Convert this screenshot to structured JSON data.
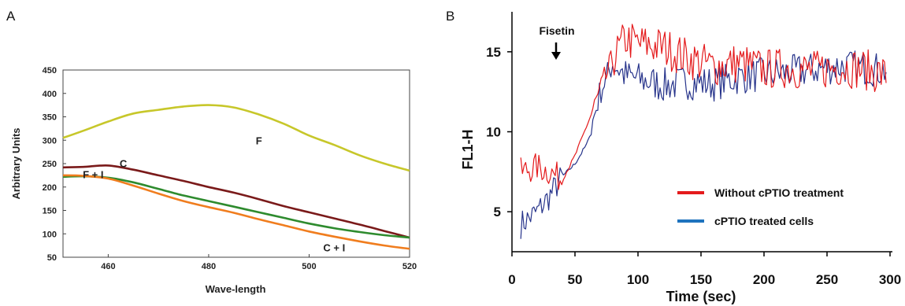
{
  "chart_data": [
    {
      "panel": "A",
      "type": "line",
      "xlabel": "Wave-length",
      "ylabel": "Arbitrary Units",
      "xlim": [
        451,
        520
      ],
      "ylim": [
        50,
        450
      ],
      "xticks": [
        460,
        480,
        500,
        520
      ],
      "yticks": [
        50,
        100,
        150,
        200,
        250,
        300,
        350,
        400,
        450
      ],
      "grid": false,
      "series": [
        {
          "name": "F",
          "color": "#c7c72a",
          "x": [
            451,
            455,
            460,
            465,
            470,
            475,
            480,
            485,
            490,
            495,
            500,
            505,
            510,
            515,
            520
          ],
          "y": [
            305,
            320,
            340,
            357,
            365,
            372,
            375,
            370,
            355,
            335,
            310,
            290,
            268,
            250,
            235
          ]
        },
        {
          "name": "C",
          "color": "#7a1a1a",
          "x": [
            451,
            455,
            460,
            465,
            470,
            475,
            480,
            485,
            490,
            495,
            500,
            505,
            510,
            515,
            520
          ],
          "y": [
            242,
            243,
            246,
            237,
            225,
            213,
            200,
            188,
            174,
            159,
            146,
            133,
            120,
            106,
            92
          ]
        },
        {
          "name": "F + I",
          "color": "#2e8b2e",
          "x": [
            451,
            455,
            460,
            465,
            470,
            475,
            480,
            485,
            490,
            495,
            500,
            505,
            510,
            515,
            520
          ],
          "y": [
            222,
            223,
            220,
            210,
            196,
            182,
            170,
            158,
            146,
            134,
            122,
            112,
            104,
            97,
            92
          ]
        },
        {
          "name": "C + I",
          "color": "#f07d1e",
          "x": [
            451,
            455,
            460,
            465,
            470,
            475,
            480,
            485,
            490,
            495,
            500,
            505,
            510,
            515,
            520
          ],
          "y": [
            225,
            224,
            218,
            203,
            186,
            170,
            157,
            145,
            131,
            118,
            105,
            94,
            84,
            75,
            68
          ]
        }
      ]
    },
    {
      "panel": "B",
      "type": "line",
      "xlabel": "Time (sec)",
      "ylabel": "FL1-H",
      "xlim": [
        0,
        300
      ],
      "ylim": [
        2.5,
        17.5
      ],
      "xticks": [
        0,
        50,
        100,
        150,
        200,
        250,
        300
      ],
      "yticks": [
        5,
        10,
        15
      ],
      "grid": false,
      "annotation": "Fisetin",
      "annotation_x": 40,
      "legend_position": "bottom-right",
      "series": [
        {
          "name": "Without cPTIO treatment",
          "color": "#e41a1c",
          "x": [
            7,
            20,
            30,
            40,
            50,
            60,
            70,
            80,
            90,
            100,
            120,
            140,
            160,
            180,
            200,
            220,
            240,
            260,
            280,
            298
          ],
          "y": [
            7.5,
            7.8,
            7.5,
            7.0,
            8.5,
            10.5,
            12.5,
            14.5,
            15.8,
            15.5,
            15.3,
            14.6,
            14.1,
            14.3,
            13.9,
            14.0,
            13.8,
            14.1,
            13.9,
            13.5
          ]
        },
        {
          "name": "cPTIO treated cells",
          "color": "#27348b",
          "x": [
            7,
            20,
            30,
            40,
            50,
            60,
            70,
            80,
            90,
            100,
            120,
            140,
            160,
            180,
            200,
            220,
            240,
            260,
            280,
            298
          ],
          "y": [
            4.2,
            5.0,
            6.0,
            7.2,
            8.0,
            9.3,
            12.5,
            14.3,
            13.5,
            13.3,
            12.9,
            13.1,
            13.0,
            13.4,
            13.6,
            13.7,
            13.9,
            14.1,
            14.0,
            13.8
          ]
        }
      ]
    }
  ],
  "panels": {
    "a_label": "A",
    "b_label": "B"
  },
  "legend_colors": {
    "red": "#e41a1c",
    "blue": "#1e73be"
  }
}
